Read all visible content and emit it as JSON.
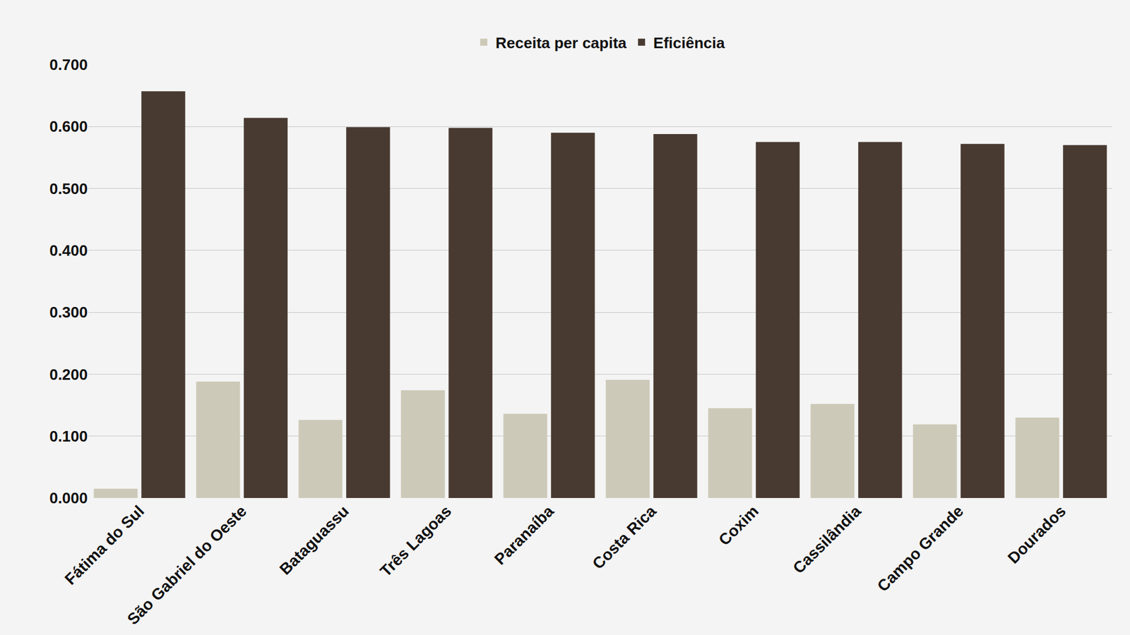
{
  "chart_data": {
    "type": "bar",
    "categories": [
      "Fátima do Sul",
      "São Gabriel do Oeste",
      "Bataguassu",
      "Três Lagoas",
      "Paranaíba",
      "Costa Rica",
      "Coxim",
      "Cassilândia",
      "Campo Grande",
      "Dourados"
    ],
    "series": [
      {
        "name": "Receita per capita",
        "color": "#ccc9b8",
        "values": [
          0.015,
          0.188,
          0.126,
          0.174,
          0.136,
          0.191,
          0.145,
          0.152,
          0.119,
          0.13
        ]
      },
      {
        "name": "Eficiência",
        "color": "#483a30",
        "values": [
          0.657,
          0.614,
          0.599,
          0.598,
          0.59,
          0.588,
          0.575,
          0.575,
          0.572,
          0.57
        ]
      }
    ],
    "ylim": [
      0,
      0.7
    ],
    "yticks": [
      {
        "value": 0,
        "label": "0.000"
      },
      {
        "value": 0.1,
        "label": "0.100"
      },
      {
        "value": 0.2,
        "label": "0.200"
      },
      {
        "value": 0.3,
        "label": "0.300"
      },
      {
        "value": 0.4,
        "label": "0.400"
      },
      {
        "value": 0.5,
        "label": "0.500"
      },
      {
        "value": 0.6,
        "label": "0.600"
      },
      {
        "value": 0.7,
        "label": "0.700"
      }
    ],
    "grid": true,
    "legend": "top"
  }
}
